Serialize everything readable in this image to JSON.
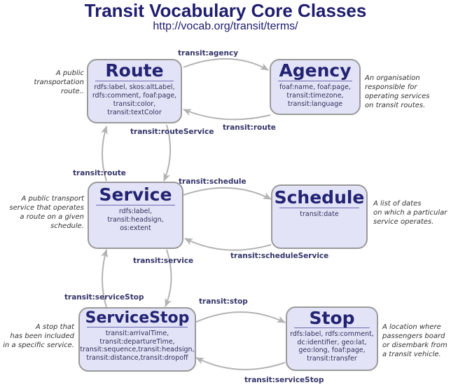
{
  "title": "Transit Vocabulary Core Classes",
  "subtitle": "http://vocab.org/transit/terms/",
  "classes": {
    "route": {
      "name": "Route",
      "properties": [
        "rdfs:label, skos:altLabel,",
        "rdfs:comment, foaf:page,",
        "transit:color,",
        "transit:textColor"
      ],
      "description": [
        "A public",
        "transportation",
        "route.."
      ]
    },
    "agency": {
      "name": "Agency",
      "properties": [
        "foaf:name, foaf:page,",
        "transit:timezone,",
        "transit:language"
      ],
      "description": [
        "An organisation",
        "responsible for",
        "operating services",
        "on transit routes."
      ]
    },
    "service": {
      "name": "Service",
      "properties": [
        "rdfs:label,",
        "transit:headsign,",
        "os:extent"
      ],
      "description": [
        "A public transport",
        "service that operates",
        "a route on a  given",
        "schedule."
      ]
    },
    "schedule": {
      "name": "Schedule",
      "properties": [
        "transit:date"
      ],
      "description": [
        "A list of dates",
        "on which a particular",
        "service operates."
      ]
    },
    "service_stop": {
      "name": "ServiceStop",
      "properties": [
        "transit:arrivalTime,",
        "transit:departureTime,",
        "transit:sequence,transit:headsign,",
        "transit:distance,transit:dropoff"
      ],
      "description": [
        "A stop that",
        "has been included",
        "in a specific service."
      ]
    },
    "stop": {
      "name": "Stop",
      "properties": [
        "rdfs:label, rdfs:comment,",
        "dc:identifier, geo:lat,",
        "geo:long, foaf:page,",
        "transit:transfer"
      ],
      "description": [
        "A location where",
        "passengers board",
        "or disembark from",
        "a transit vehicle."
      ]
    }
  },
  "relations": {
    "route_agency": "transit:agency",
    "agency_route": "transit:route",
    "route_service": "transit:routeService",
    "service_route": "transit:route",
    "service_schedule": "transit:schedule",
    "schedule_service": "transit:scheduleService",
    "service_servicestop": "transit:serviceStop",
    "servicestop_service": "transit:service",
    "servicestop_stop": "transit:stop",
    "stop_servicestop": "transit:serviceStop"
  },
  "colors": {
    "box_fill": "#e3e3f7",
    "box_border": "#9a9a9a",
    "heading": "#232374",
    "label": "#35356a",
    "arrow": "#b3b3b3"
  }
}
